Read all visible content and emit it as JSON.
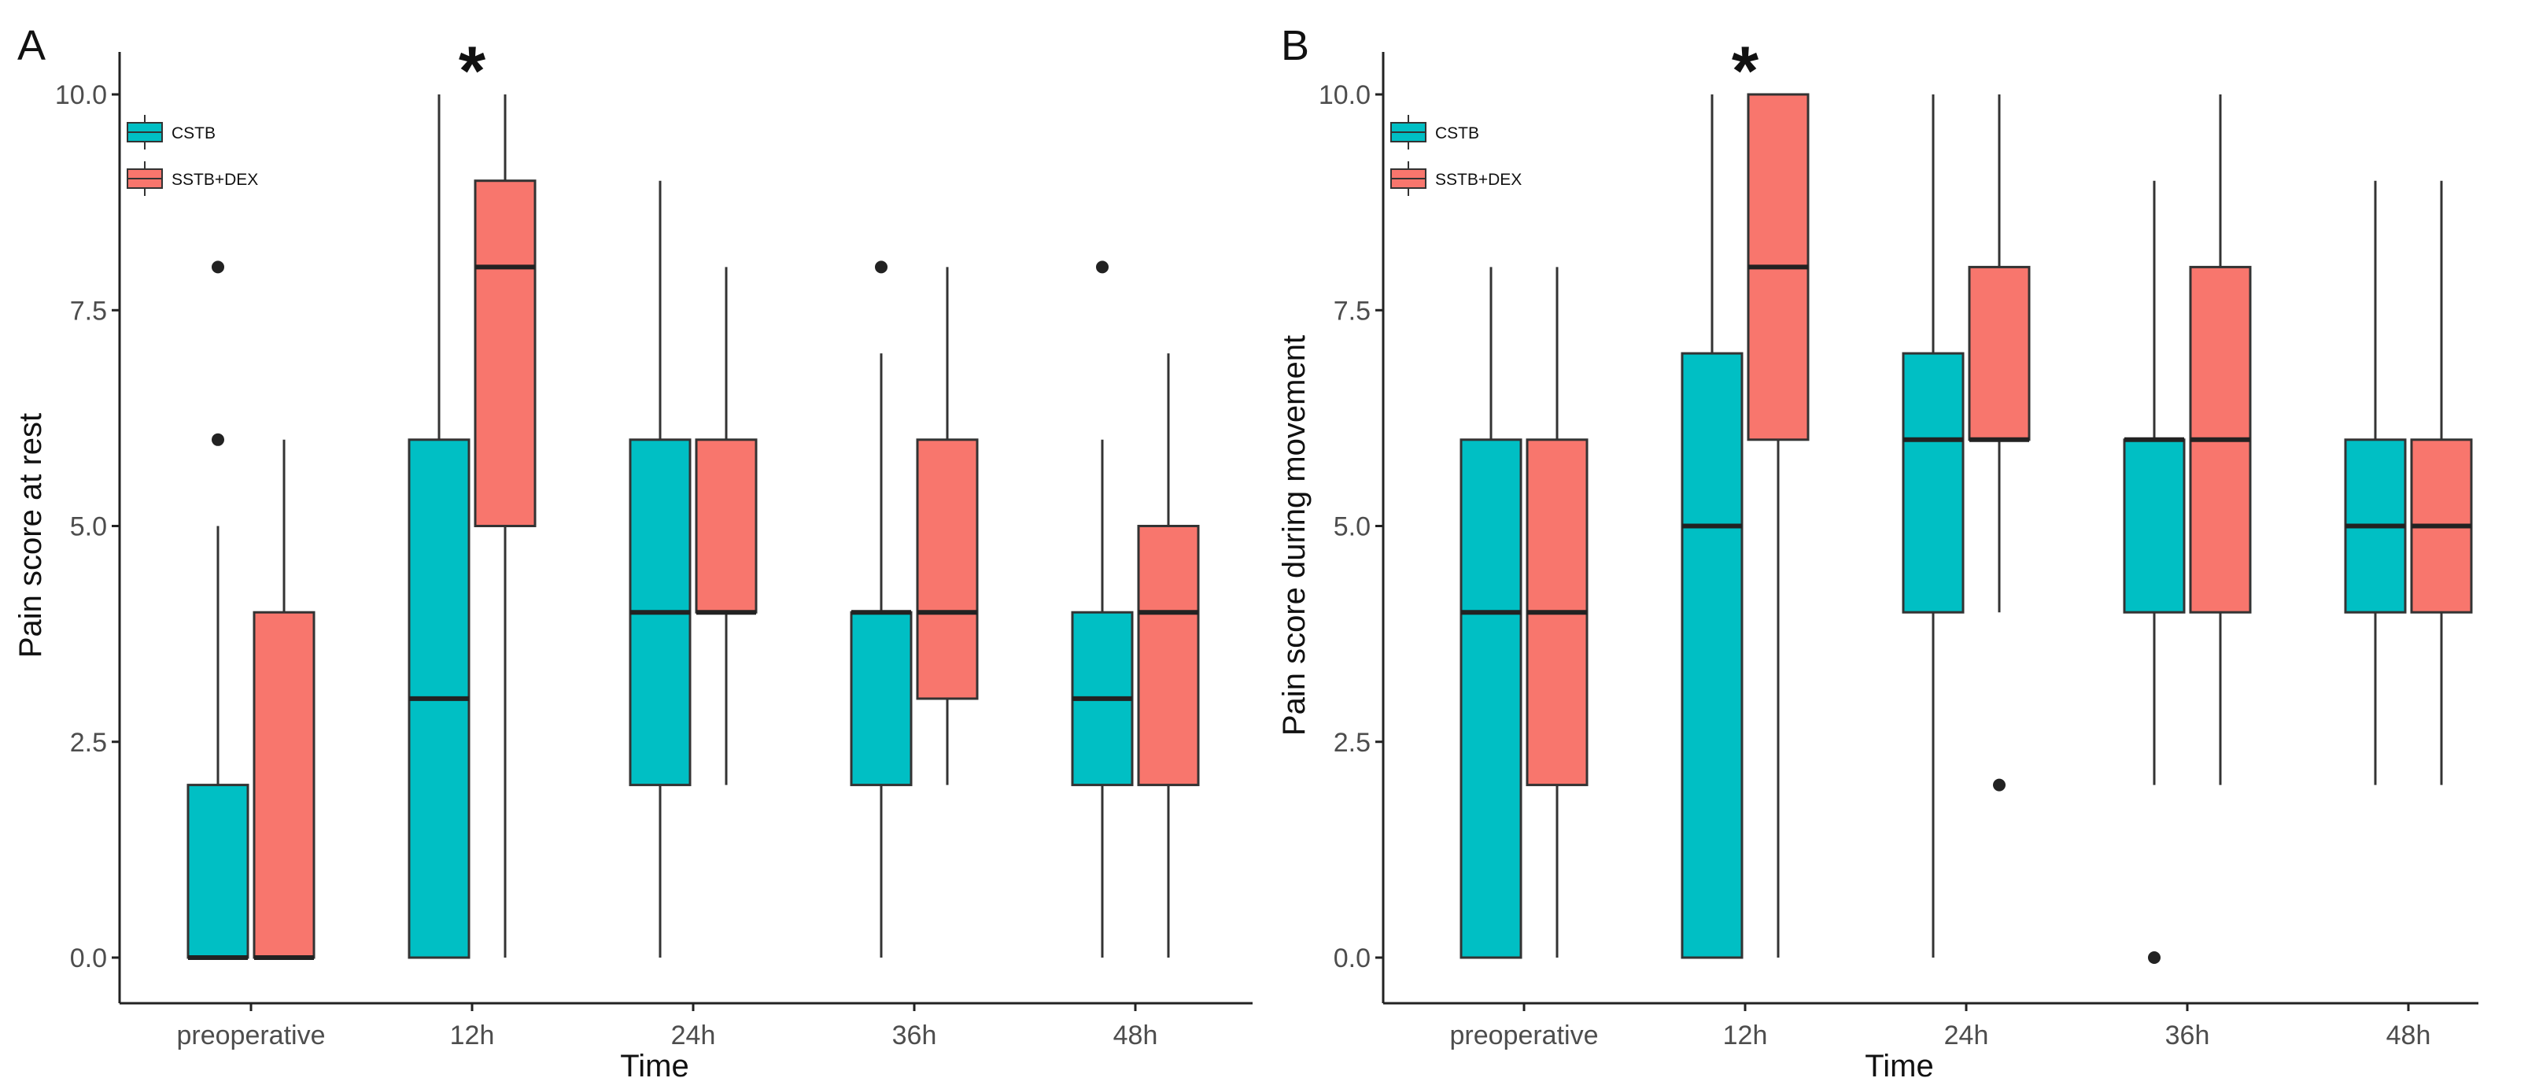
{
  "chart_data": [
    {
      "type": "boxplot",
      "panel_label": "A",
      "xlabel": "Time",
      "ylabel": "Pain score at rest",
      "ylim": [
        -0.5,
        10.3
      ],
      "yticks": [
        "0.0",
        "2.5",
        "5.0",
        "7.5",
        "10.0"
      ],
      "categories": [
        "preoperative",
        "12h",
        "24h",
        "36h",
        "48h"
      ],
      "legend": {
        "position": "top-left",
        "entries": [
          "CSTB",
          "SSTB+DEX"
        ]
      },
      "significance": {
        "category": "12h",
        "marker": "*"
      },
      "series": [
        {
          "name": "CSTB",
          "color": "#00BFC4",
          "boxes": [
            {
              "min": 0,
              "q1": 0,
              "median": 0,
              "q3": 2,
              "max": 5,
              "outliers": [
                6,
                8
              ]
            },
            {
              "min": 0,
              "q1": 0,
              "median": 3,
              "q3": 6,
              "max": 10,
              "outliers": []
            },
            {
              "min": 0,
              "q1": 2,
              "median": 4,
              "q3": 6,
              "max": 9,
              "outliers": []
            },
            {
              "min": 0,
              "q1": 2,
              "median": 4,
              "q3": 4,
              "max": 7,
              "outliers": [
                8
              ]
            },
            {
              "min": 0,
              "q1": 2,
              "median": 3,
              "q3": 4,
              "max": 6,
              "outliers": [
                8
              ]
            }
          ]
        },
        {
          "name": "SSTB+DEX",
          "color": "#F8766D",
          "boxes": [
            {
              "min": 0,
              "q1": 0,
              "median": 0,
              "q3": 4,
              "max": 6,
              "outliers": []
            },
            {
              "min": 0,
              "q1": 5,
              "median": 8,
              "q3": 9,
              "max": 10,
              "outliers": []
            },
            {
              "min": 2,
              "q1": 4,
              "median": 4,
              "q3": 6,
              "max": 8,
              "outliers": []
            },
            {
              "min": 2,
              "q1": 3,
              "median": 4,
              "q3": 6,
              "max": 8,
              "outliers": []
            },
            {
              "min": 0,
              "q1": 2,
              "median": 4,
              "q3": 5,
              "max": 7,
              "outliers": []
            }
          ]
        }
      ]
    },
    {
      "type": "boxplot",
      "panel_label": "B",
      "xlabel": "Time",
      "ylabel": "Pain score during movement",
      "ylim": [
        -0.5,
        10.3
      ],
      "yticks": [
        "0.0",
        "2.5",
        "5.0",
        "7.5",
        "10.0"
      ],
      "categories": [
        "preoperative",
        "12h",
        "24h",
        "36h",
        "48h"
      ],
      "legend": {
        "position": "top-left",
        "entries": [
          "CSTB",
          "SSTB+DEX"
        ]
      },
      "significance": {
        "category": "12h",
        "marker": "*"
      },
      "series": [
        {
          "name": "CSTB",
          "color": "#00BFC4",
          "boxes": [
            {
              "min": 0,
              "q1": 0,
              "median": 4,
              "q3": 6,
              "max": 8,
              "outliers": []
            },
            {
              "min": 0,
              "q1": 0,
              "median": 5,
              "q3": 7,
              "max": 10,
              "outliers": []
            },
            {
              "min": 0,
              "q1": 4,
              "median": 6,
              "q3": 7,
              "max": 10,
              "outliers": []
            },
            {
              "min": 2,
              "q1": 4,
              "median": 6,
              "q3": 6,
              "max": 9,
              "outliers": [
                0
              ]
            },
            {
              "min": 2,
              "q1": 4,
              "median": 5,
              "q3": 6,
              "max": 9,
              "outliers": []
            }
          ]
        },
        {
          "name": "SSTB+DEX",
          "color": "#F8766D",
          "boxes": [
            {
              "min": 0,
              "q1": 2,
              "median": 4,
              "q3": 6,
              "max": 8,
              "outliers": []
            },
            {
              "min": 0,
              "q1": 6,
              "median": 8,
              "q3": 10,
              "max": 10,
              "outliers": []
            },
            {
              "min": 4,
              "q1": 6,
              "median": 6,
              "q3": 8,
              "max": 10,
              "outliers": [
                2
              ]
            },
            {
              "min": 2,
              "q1": 4,
              "median": 6,
              "q3": 8,
              "max": 10,
              "outliers": []
            },
            {
              "min": 2,
              "q1": 4,
              "median": 5,
              "q3": 6,
              "max": 9,
              "outliers": []
            }
          ]
        }
      ]
    }
  ]
}
